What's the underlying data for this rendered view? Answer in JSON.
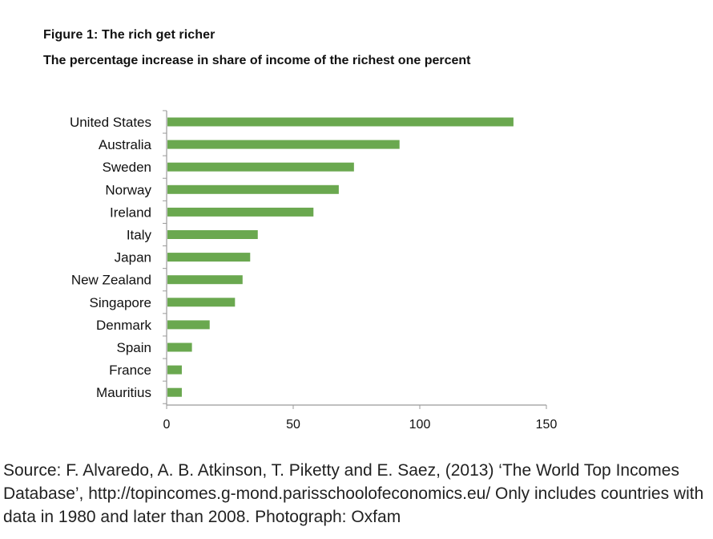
{
  "figure": {
    "title": "Figure 1: The rich get richer",
    "subtitle": "The percentage increase in share of income of the richest one percent"
  },
  "chart_data": {
    "type": "bar",
    "orientation": "horizontal",
    "title": "Figure 1: The rich get richer",
    "subtitle": "The percentage increase in share of income of the richest one percent",
    "categories": [
      "United States",
      "Australia",
      "Sweden",
      "Norway",
      "Ireland",
      "Italy",
      "Japan",
      "New Zealand",
      "Singapore",
      "Denmark",
      "Spain",
      "France",
      "Mauritius"
    ],
    "values": [
      137,
      92,
      74,
      68,
      58,
      36,
      33,
      30,
      27,
      17,
      10,
      6,
      6
    ],
    "xlabel": "",
    "ylabel": "",
    "xlim": [
      0,
      150
    ],
    "xticks": [
      0,
      50,
      100,
      150
    ],
    "bar_color": "#6aa84f",
    "grid": false,
    "legend": "none"
  },
  "caption": {
    "text": "Source: F. Alvaredo, A. B. Atkinson, T. Piketty and E. Saez, (2013) ‘The World Top Incomes Database’, http://topincomes.g-mond.parisschoolofeconomics.eu/ Only includes countries with data in 1980 and later than 2008. Photograph: Oxfam"
  }
}
